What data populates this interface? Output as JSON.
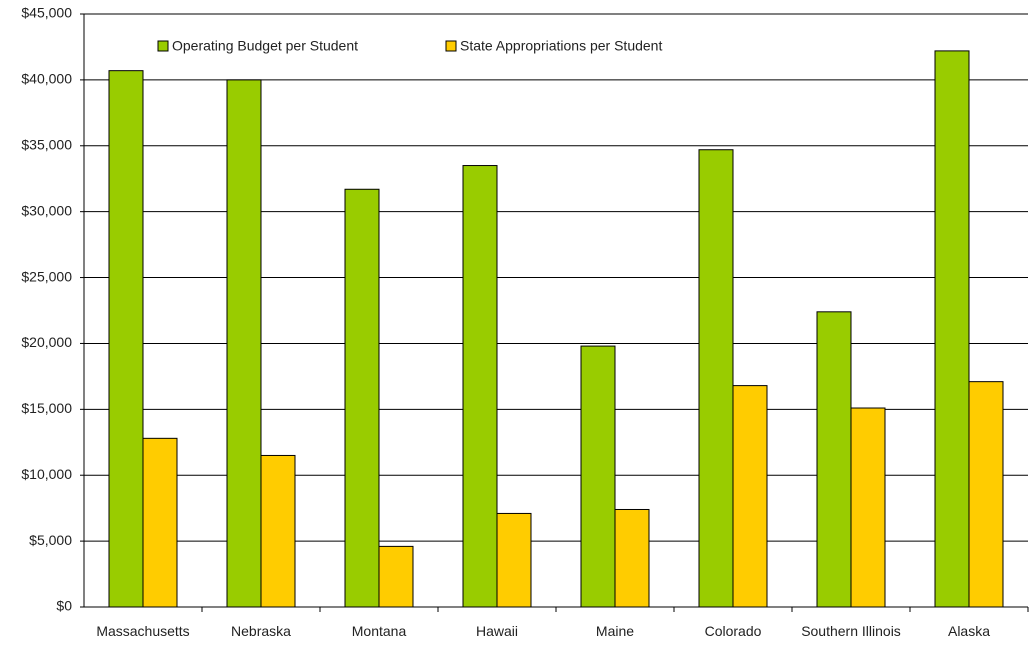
{
  "chart_data": {
    "type": "bar",
    "categories": [
      "Massachusetts",
      "Nebraska",
      "Montana",
      "Hawaii",
      "Maine",
      "Colorado",
      "Southern Illinois",
      "Alaska"
    ],
    "series": [
      {
        "name": "Operating Budget per Student",
        "color": "#99cc00",
        "values": [
          40700,
          40000,
          31700,
          33500,
          19800,
          34700,
          22400,
          42200
        ]
      },
      {
        "name": "State Appropriations per Student",
        "color": "#ffcc00",
        "values": [
          12800,
          11500,
          4600,
          7100,
          7400,
          16800,
          15100,
          17100
        ]
      }
    ],
    "ylim": [
      0,
      45000
    ],
    "yticks": [
      {
        "value": 0,
        "label": "$0"
      },
      {
        "value": 5000,
        "label": "$5,000"
      },
      {
        "value": 10000,
        "label": "$10,000"
      },
      {
        "value": 15000,
        "label": "$15,000"
      },
      {
        "value": 20000,
        "label": "$20,000"
      },
      {
        "value": 25000,
        "label": "$25,000"
      },
      {
        "value": 30000,
        "label": "$30,000"
      },
      {
        "value": 35000,
        "label": "$35,000"
      },
      {
        "value": 40000,
        "label": "$40,000"
      },
      {
        "value": 45000,
        "label": "$45,000"
      }
    ],
    "grid": true,
    "legend": "top-left"
  }
}
